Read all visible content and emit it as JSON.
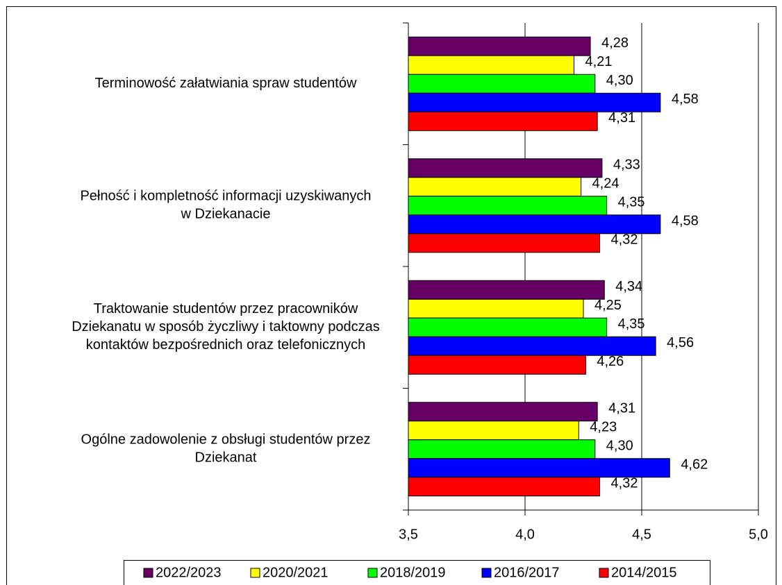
{
  "chart_data": {
    "type": "bar",
    "orientation": "horizontal",
    "categories": [
      [
        "Terminowość załatwiania spraw studentów"
      ],
      [
        "Pełność i kompletność informacji uzyskiwanych",
        "w Dziekanacie"
      ],
      [
        "Traktowanie studentów przez pracowników",
        "Dziekanatu w sposób życzliwy i taktowny podczas",
        "kontaktów bezpośrednich oraz telefonicznych"
      ],
      [
        "Ogólne zadowolenie z obsługi studentów przez",
        "Dziekanat"
      ]
    ],
    "series": [
      {
        "name": "2022/2023",
        "color": "#660066",
        "values": [
          4.28,
          4.33,
          4.34,
          4.31
        ],
        "value_labels": [
          "4,28",
          "4,33",
          "4,34",
          "4,31"
        ]
      },
      {
        "name": "2020/2021",
        "color": "#ffff00",
        "values": [
          4.21,
          4.24,
          4.25,
          4.23
        ],
        "value_labels": [
          "4,21",
          "4,24",
          "4,25",
          "4,23"
        ]
      },
      {
        "name": "2018/2019",
        "color": "#00ff00",
        "values": [
          4.3,
          4.35,
          4.35,
          4.3
        ],
        "value_labels": [
          "4,30",
          "4,35",
          "4,35",
          "4,30"
        ]
      },
      {
        "name": "2016/2017",
        "color": "#0000ff",
        "values": [
          4.58,
          4.58,
          4.56,
          4.62
        ],
        "value_labels": [
          "4,58",
          "4,58",
          "4,56",
          "4,62"
        ]
      },
      {
        "name": "2014/2015",
        "color": "#ff0000",
        "values": [
          4.31,
          4.32,
          4.26,
          4.32
        ],
        "value_labels": [
          "4,31",
          "4,32",
          "4,26",
          "4,32"
        ]
      }
    ],
    "xlim": [
      3.5,
      5.0
    ],
    "xticks": [
      {
        "value": 3.5,
        "label": "3,5"
      },
      {
        "value": 4.0,
        "label": "4,0"
      },
      {
        "value": 4.5,
        "label": "4,5"
      },
      {
        "value": 5.0,
        "label": "5,0"
      }
    ],
    "grid": true,
    "legend": "bottom"
  }
}
